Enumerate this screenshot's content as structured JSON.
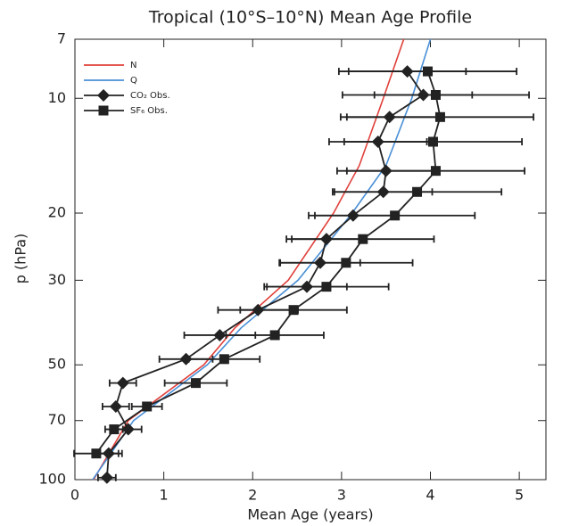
{
  "chart_data": {
    "type": "line",
    "title": "Tropical (10°S–10°N) Mean Age Profile",
    "x_label": "Mean Age (years)",
    "y_label": "p (hPa)",
    "xlim": [
      0,
      5.3
    ],
    "xticks": [
      0,
      1,
      2,
      3,
      4,
      5
    ],
    "ylim": [
      100,
      7
    ],
    "yticks": [
      7,
      10,
      20,
      30,
      50,
      70,
      100
    ],
    "y_log": true,
    "legend": "upper left",
    "series": [
      {
        "name": "N",
        "color": "#e0403a",
        "marker": null,
        "x": [
          3.7,
          3.47,
          3.2,
          2.91,
          2.4,
          1.8,
          1.45,
          0.6,
          0.21
        ],
        "y": [
          7,
          10,
          15,
          20,
          30,
          40,
          50,
          70,
          100
        ]
      },
      {
        "name": "Q",
        "color": "#4a8fd6",
        "marker": null,
        "x": [
          4.0,
          3.79,
          3.5,
          3.12,
          2.51,
          1.87,
          1.49,
          0.66,
          0.2
        ],
        "y": [
          7,
          10,
          15,
          20,
          30,
          40,
          50,
          70,
          100
        ]
      },
      {
        "name": "CO₂ Obs.",
        "color": "#222222",
        "marker": "diamond",
        "x": [
          3.74,
          3.92,
          3.54,
          3.41,
          3.5,
          3.47,
          3.13,
          2.83,
          2.76,
          2.61,
          2.06,
          1.63,
          1.25,
          0.54,
          0.46,
          0.6,
          0.38,
          0.36
        ],
        "y": [
          8.5,
          9.8,
          11.2,
          13.0,
          15.5,
          17.6,
          20.3,
          23.4,
          27.0,
          31.2,
          35.9,
          41.8,
          48.3,
          55.8,
          64.3,
          73.8,
          85.4,
          98.8
        ],
        "errors": [
          0.66,
          0.55,
          0.55,
          0.55,
          0.55,
          0.55,
          0.5,
          0.45,
          0.45,
          0.45,
          0.45,
          0.4,
          0.3,
          0.15,
          0.15,
          0.15,
          0.15,
          0.1
        ]
      },
      {
        "name": "SF₆ Obs.",
        "color": "#222222",
        "marker": "square",
        "x": [
          3.97,
          4.06,
          4.11,
          4.03,
          4.06,
          3.85,
          3.6,
          3.24,
          3.05,
          2.83,
          2.46,
          2.25,
          1.68,
          1.36,
          0.81,
          0.44,
          0.24
        ],
        "y": [
          8.5,
          9.8,
          11.2,
          13.0,
          15.5,
          17.6,
          20.3,
          23.4,
          27.0,
          31.2,
          35.9,
          41.8,
          48.3,
          55.8,
          64.3,
          73.8,
          85.4
        ],
        "errors": [
          1.0,
          1.05,
          1.05,
          1.0,
          1.0,
          0.95,
          0.9,
          0.8,
          0.75,
          0.7,
          0.6,
          0.55,
          0.4,
          0.35,
          0.17,
          0.1,
          0.25
        ]
      }
    ]
  }
}
